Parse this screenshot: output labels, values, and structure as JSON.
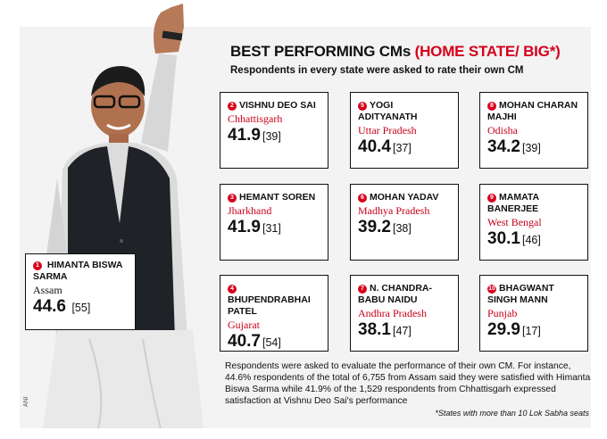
{
  "header": {
    "title": "BEST PERFORMING CMs",
    "title_accent": "(HOME STATE/ BIG*)",
    "subtitle": "Respondents in every state were asked to rate their own CM"
  },
  "featured": {
    "rank": "1",
    "name": "HIMANTA BISWA SARMA",
    "state": "Assam",
    "score": "44.6",
    "rank_bracket": "[55]"
  },
  "cards": [
    {
      "rank": "2",
      "name": "VISHNU DEO SAI",
      "state": "Chhattisgarh",
      "score": "41.9",
      "rank_bracket": "[39]"
    },
    {
      "rank": "5",
      "name": "YOGI ADITYANATH",
      "state": "Uttar Pradesh",
      "score": "40.4",
      "rank_bracket": "[37]"
    },
    {
      "rank": "8",
      "name": "MOHAN CHARAN MAJHI",
      "state": "Odisha",
      "score": "34.2",
      "rank_bracket": "[39]"
    },
    {
      "rank": "3",
      "name": "HEMANT SOREN",
      "state": "Jharkhand",
      "score": "41.9",
      "rank_bracket": "[31]"
    },
    {
      "rank": "6",
      "name": "MOHAN YADAV",
      "state": "Madhya Pradesh",
      "score": "39.2",
      "rank_bracket": "[38]"
    },
    {
      "rank": "9",
      "name": "MAMATA BANERJEE",
      "state": "West Bengal",
      "score": "30.1",
      "rank_bracket": "[46]"
    },
    {
      "rank": "4",
      "name": "BHUPENDRABHAI PATEL",
      "state": "Gujarat",
      "score": "40.7",
      "rank_bracket": "[54]"
    },
    {
      "rank": "7",
      "name": "N. CHANDRA-BABU NAIDU",
      "state": "Andhra Pradesh",
      "score": "38.1",
      "rank_bracket": "[47]"
    },
    {
      "rank": "10",
      "name": "BHAGWANT SINGH MANN",
      "state": "Punjab",
      "score": "29.9",
      "rank_bracket": "[17]"
    }
  ],
  "footnote": "Respondents were asked to evaluate the performance of their own CM. For instance, 44.6% respondents of the total of 6,755 from Assam said they were satisfied with Himanta Biswa Sarma while 41.9% of the 1,529 respondents from Chhattisgarh expressed satisfaction at Vishnu Deo Sai's performance",
  "footnote_small": "*States with more than 10 Lok Sabha seats",
  "credit": "ANI",
  "colors": {
    "accent": "#d6001c",
    "state_text": "#c8001a",
    "panel": "#f3f3f3"
  }
}
